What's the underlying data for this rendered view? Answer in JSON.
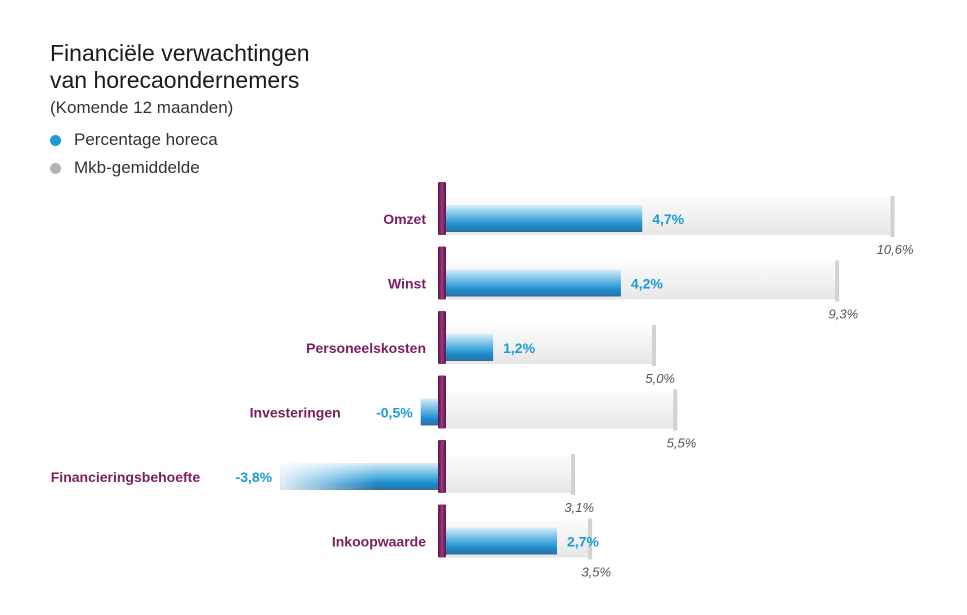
{
  "chart_data": {
    "type": "bar",
    "title_line1": "Financiële verwachtingen",
    "title_line2": "van horecaondernemers",
    "subtitle": "(Komende 12 maanden)",
    "categories": [
      "Omzet",
      "Winst",
      "Personeelskosten",
      "Investeringen",
      "Financieringsbehoefte",
      "Inkoopwaarde"
    ],
    "series": [
      {
        "name": "Percentage horeca",
        "color": "#1a9bd7",
        "values": [
          4.7,
          4.2,
          1.2,
          -0.5,
          -3.8,
          2.7
        ],
        "labels": [
          "4,7%",
          "4,2%",
          "1,2%",
          "-0,5%",
          "-3,8%",
          "2,7%"
        ]
      },
      {
        "name": "Mkb-gemiddelde",
        "color": "#b3b3b3",
        "values": [
          10.6,
          9.3,
          5.0,
          5.5,
          3.1,
          3.5
        ],
        "labels": [
          "10,6%",
          "9,3%",
          "5,0%",
          "5,5%",
          "3,1%",
          "3,5%"
        ]
      }
    ],
    "category_color": "#7d1d5f",
    "axis_color": "#7d1d5f",
    "legend_position": "top-left",
    "grid": false
  }
}
